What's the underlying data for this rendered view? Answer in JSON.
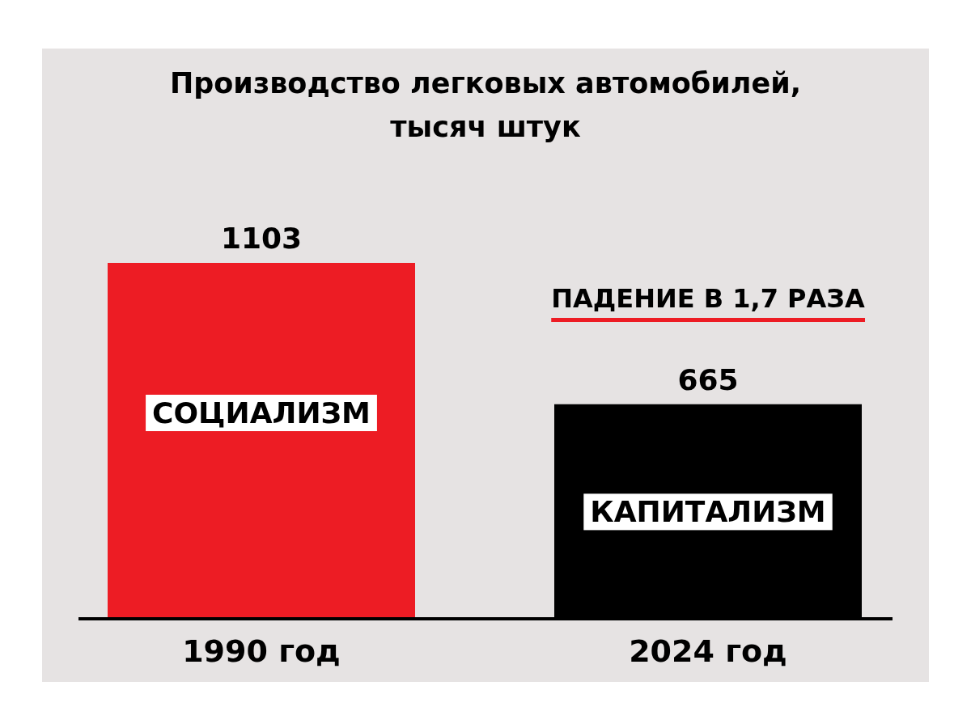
{
  "chart_data": {
    "type": "bar",
    "title": "Производство легковых автомобилей,\nтысяч штук",
    "categories": [
      "1990 год",
      "2024 год"
    ],
    "values": [
      1103,
      665
    ],
    "colors": [
      "#ed1c24",
      "#000000"
    ],
    "data_labels": true,
    "annotations": [
      "СОЦИАЛИЗМ",
      "КАПИТАЛИЗМ",
      "ПАДЕНИЕ В 1,7 РАЗА"
    ]
  }
}
